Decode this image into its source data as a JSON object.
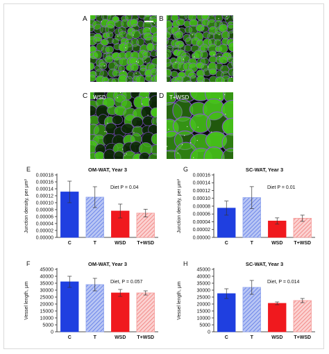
{
  "micrographs": [
    {
      "letter": "A",
      "tag": "",
      "scale_bar": true,
      "cells": "dense"
    },
    {
      "letter": "B",
      "tag": "",
      "scale_bar": false,
      "cells": "dense"
    },
    {
      "letter": "C",
      "tag": "WSD",
      "scale_bar": false,
      "cells": "mixed"
    },
    {
      "letter": "D",
      "tag": "T+WSD",
      "scale_bar": false,
      "cells": "large"
    }
  ],
  "colors": {
    "C": "#1f3fe0",
    "T": "#8ea4ee",
    "WSD": "#f0191e",
    "T_WSD": "#f59a98",
    "tissue_green": "#46c21a",
    "membrane": "#8a55d8"
  },
  "chart_data": [
    {
      "panel": "E",
      "type": "bar",
      "title": "OM-WAT, Year 3",
      "ylabel": "Junction density, per μm²",
      "categories": [
        "C",
        "T",
        "WSD",
        "T+WSD"
      ],
      "values": [
        0.000131,
        0.000116,
        7.6e-05,
        7e-05
      ],
      "errors": [
        3.1e-05,
        3e-05,
        2e-05,
        1.1e-05
      ],
      "ylim": [
        0,
        0.00018
      ],
      "yticks": [
        "0.00000",
        "0.00002",
        "0.00004",
        "0.00006",
        "0.00008",
        "0.00010",
        "0.00012",
        "0.00014",
        "0.00016",
        "0.00018"
      ],
      "tick_step": 2e-05,
      "annotation": "Diet P = 0.04"
    },
    {
      "panel": "G",
      "type": "bar",
      "title": "SC-WAT, Year 3",
      "ylabel": "Junction density, per μm²",
      "categories": [
        "C",
        "T",
        "WSD",
        "T+WSD"
      ],
      "values": [
        7.5e-05,
        0.000102,
        4.2e-05,
        4.9e-05
      ],
      "errors": [
        1.8e-05,
        2.8e-05,
        8e-06,
        8e-06
      ],
      "ylim": [
        0,
        0.00016
      ],
      "yticks": [
        "0.00000",
        "0.00002",
        "0.00004",
        "0.00006",
        "0.00008",
        "0.00010",
        "0.00012",
        "0.00014",
        "0.00016"
      ],
      "tick_step": 2e-05,
      "annotation": "Diet P = 0.01"
    },
    {
      "panel": "F",
      "type": "bar",
      "title": "OM-WAT, Year 3",
      "ylabel": "Vessel length, μm",
      "categories": [
        "C",
        "T",
        "WSD",
        "T+WSD"
      ],
      "values": [
        36000,
        34000,
        28000,
        28000
      ],
      "errors": [
        4000,
        4500,
        2500,
        1500
      ],
      "ylim": [
        0,
        45000
      ],
      "yticks": [
        "0",
        "5000",
        "10000",
        "15000",
        "20000",
        "25000",
        "30000",
        "35000",
        "40000",
        "45000"
      ],
      "tick_step": 5000,
      "annotation": "Diet, P = 0.057"
    },
    {
      "panel": "H",
      "type": "bar",
      "title": "SC-WAT, Year 3",
      "ylabel": "Vessel length, μm",
      "categories": [
        "C",
        "T",
        "WSD",
        "T+WSD"
      ],
      "values": [
        27500,
        32000,
        20500,
        22500
      ],
      "errors": [
        3500,
        5000,
        1000,
        1500
      ],
      "ylim": [
        0,
        45000
      ],
      "yticks": [
        "0",
        "5000",
        "10000",
        "15000",
        "20000",
        "25000",
        "30000",
        "35000",
        "40000",
        "45000"
      ],
      "tick_step": 5000,
      "annotation": "Diet, P = 0.014"
    }
  ]
}
